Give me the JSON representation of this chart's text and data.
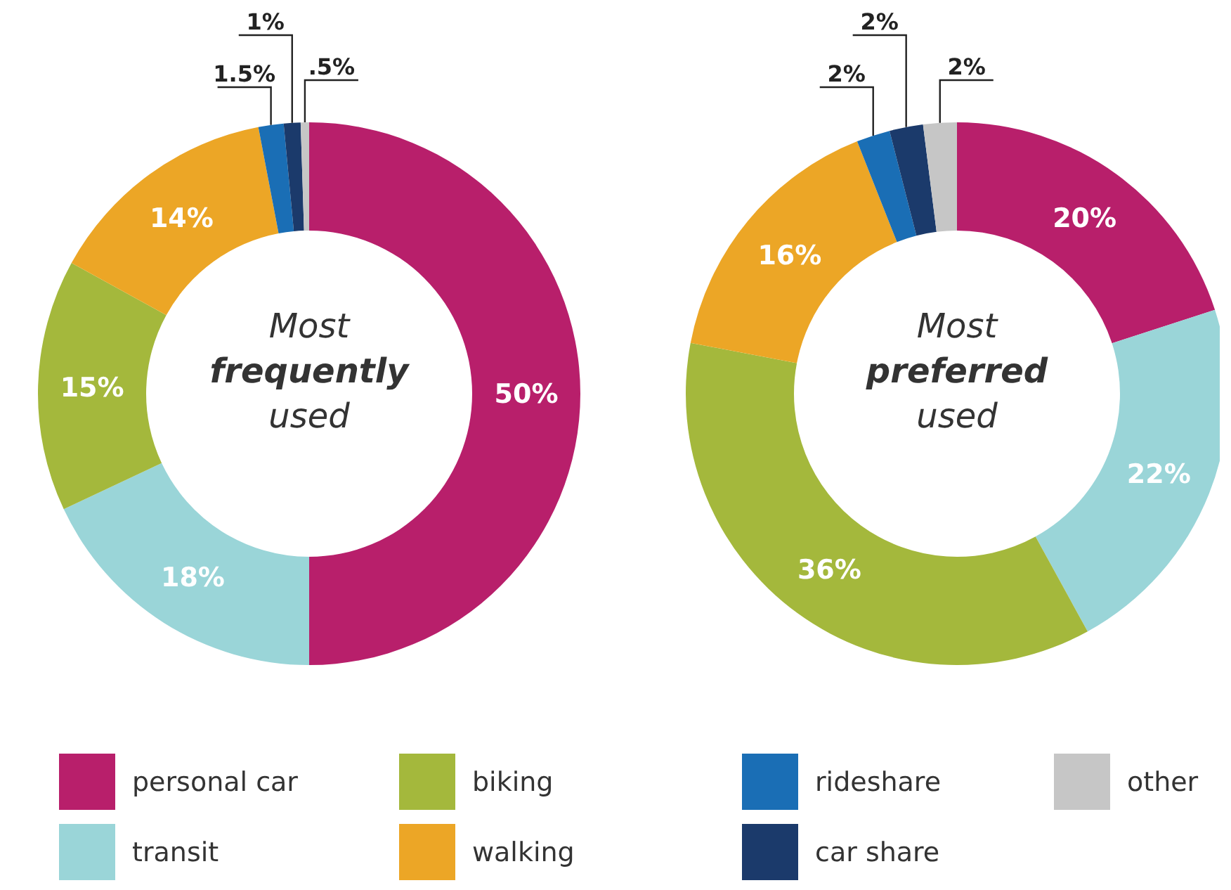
{
  "chart_data": [
    {
      "type": "donut",
      "title": "Most frequently used",
      "categories": [
        "personal car",
        "transit",
        "biking",
        "walking",
        "rideshare",
        "car share",
        "other"
      ],
      "values": [
        50,
        18,
        15,
        14,
        1.5,
        1,
        0.5
      ],
      "colors": [
        "#b81f6b",
        "#9ad5d8",
        "#a4b83c",
        "#eca626",
        "#1a6eb5",
        "#1b3a6b",
        "#c6c6c6"
      ],
      "value_labels": [
        "50%",
        "18%",
        "15%",
        "14%",
        "1.5%",
        "1%",
        ".5%"
      ],
      "legend": "bottom"
    },
    {
      "type": "donut",
      "title": "Most preferred used",
      "values": [
        20,
        22,
        36,
        16,
        2,
        2,
        2
      ],
      "colors": [
        "#b81f6b",
        "#9ad5d8",
        "#a4b83c",
        "#eca626",
        "#1a6eb5",
        "#1b3a6b",
        "#c6c6c6"
      ],
      "value_labels": [
        "20%",
        "22%",
        "36%",
        "16%",
        "2%",
        "2%",
        "2%"
      ]
    }
  ]
}
